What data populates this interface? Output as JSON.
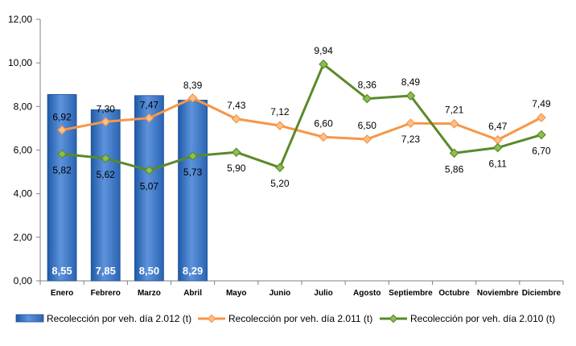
{
  "chart_data": {
    "type": "bar+line",
    "categories": [
      "Enero",
      "Febrero",
      "Marzo",
      "Abril",
      "Mayo",
      "Junio",
      "Julio",
      "Agosto",
      "Septiembre",
      "Octubre",
      "Noviembre",
      "Diciembre"
    ],
    "series": [
      {
        "name": "Recolección por veh. día 2.012 (t)",
        "type": "bar",
        "color": "#2f6fc4",
        "values": [
          8.55,
          7.85,
          8.5,
          8.29,
          null,
          null,
          null,
          null,
          null,
          null,
          null,
          null
        ],
        "labels": [
          "8,55",
          "7,85",
          "8,50",
          "8,29",
          "",
          "",
          "",
          "",
          "",
          "",
          "",
          ""
        ]
      },
      {
        "name": "Recolección por veh. día 2.011 (t)",
        "type": "line",
        "color": "#f79646",
        "marker_color": "#fbbf8a",
        "values": [
          6.92,
          7.3,
          7.47,
          8.39,
          7.43,
          7.12,
          6.6,
          6.5,
          7.23,
          7.21,
          6.47,
          7.49
        ],
        "labels": [
          "6,92",
          "7,30",
          "7,47",
          "8,39",
          "7,43",
          "7,12",
          "6,60",
          "6,50",
          "7,23",
          "7,21",
          "6,47",
          "7,49"
        ]
      },
      {
        "name": "Recolección por veh. día 2.010 (t)",
        "type": "line",
        "color": "#5a8a2a",
        "marker_color": "#8cbf4f",
        "values": [
          5.82,
          5.62,
          5.07,
          5.73,
          5.9,
          5.2,
          9.94,
          8.36,
          8.49,
          5.86,
          6.11,
          6.7
        ],
        "labels": [
          "5,82",
          "5,62",
          "5,07",
          "5,73",
          "5,90",
          "5,20",
          "9,94",
          "8,36",
          "8,49",
          "5,86",
          "6,11",
          "6,70"
        ]
      }
    ],
    "yticks": [
      "0,00",
      "2,00",
      "4,00",
      "6,00",
      "8,00",
      "10,00",
      "12,00"
    ],
    "ylim": [
      0,
      12
    ],
    "grid": false,
    "legend": "bottom"
  }
}
